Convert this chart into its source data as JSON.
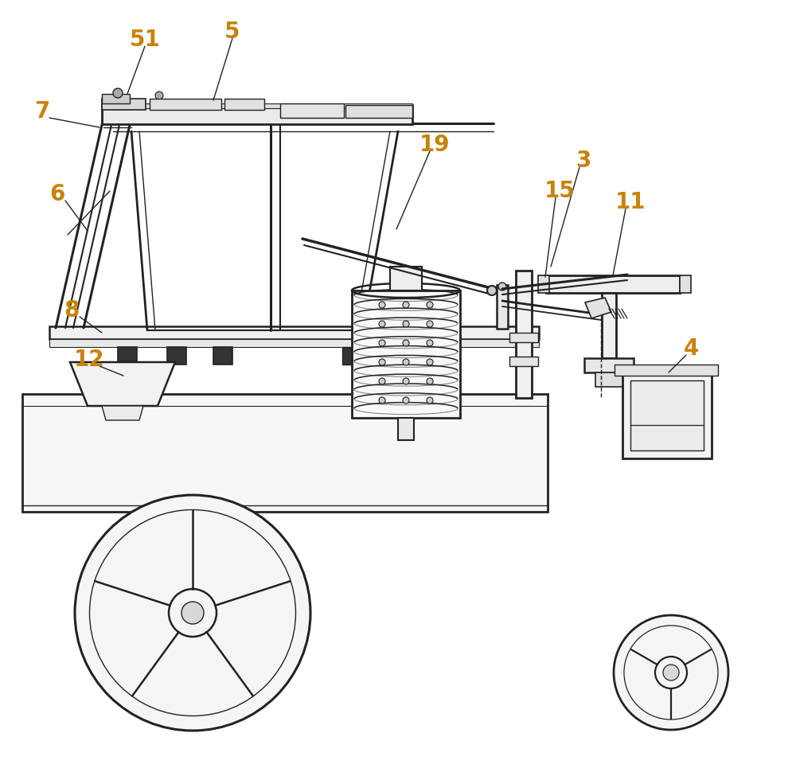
{
  "bg_color": "#ffffff",
  "line_color": "#222222",
  "label_color": "#c8820a",
  "fig_width": 10.0,
  "fig_height": 9.75
}
